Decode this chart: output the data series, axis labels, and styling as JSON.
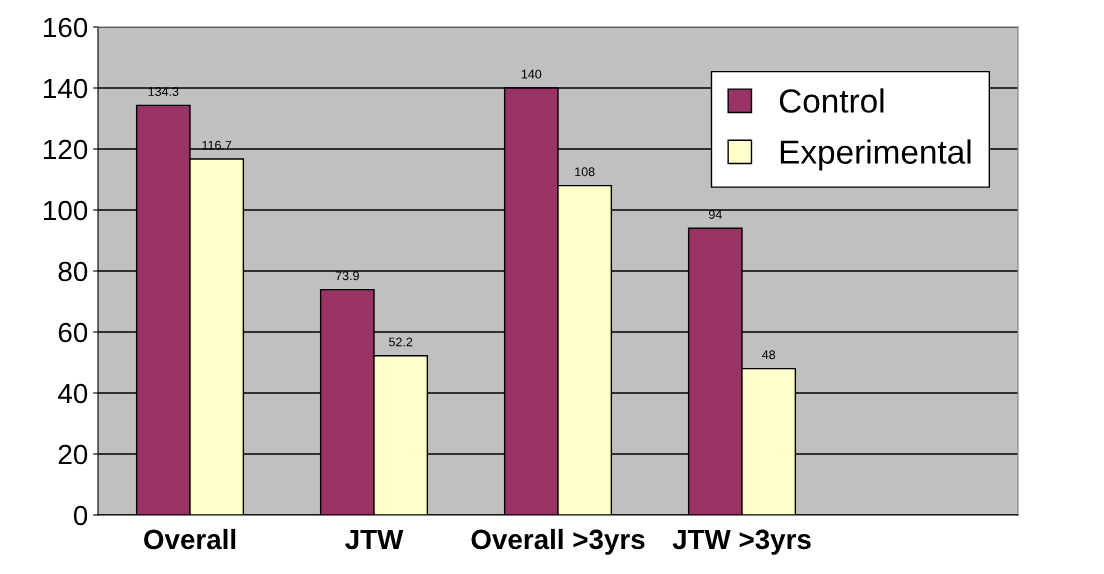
{
  "chart_data": {
    "type": "bar",
    "categories": [
      "Overall",
      "JTW",
      "Overall >3yrs",
      "JTW >3yrs",
      null
    ],
    "series": [
      {
        "name": "Control",
        "color": "#993366",
        "values": [
          134.3,
          73.9,
          140,
          94,
          null
        ]
      },
      {
        "name": "Experimental",
        "color": "#ffffcc",
        "values": [
          116.7,
          52.2,
          108,
          48,
          null
        ]
      }
    ],
    "ylim": [
      0,
      160
    ],
    "yticks": [
      0,
      20,
      40,
      60,
      80,
      100,
      120,
      140,
      160
    ],
    "grid": "y",
    "legend": "top right",
    "data_labels": true
  }
}
